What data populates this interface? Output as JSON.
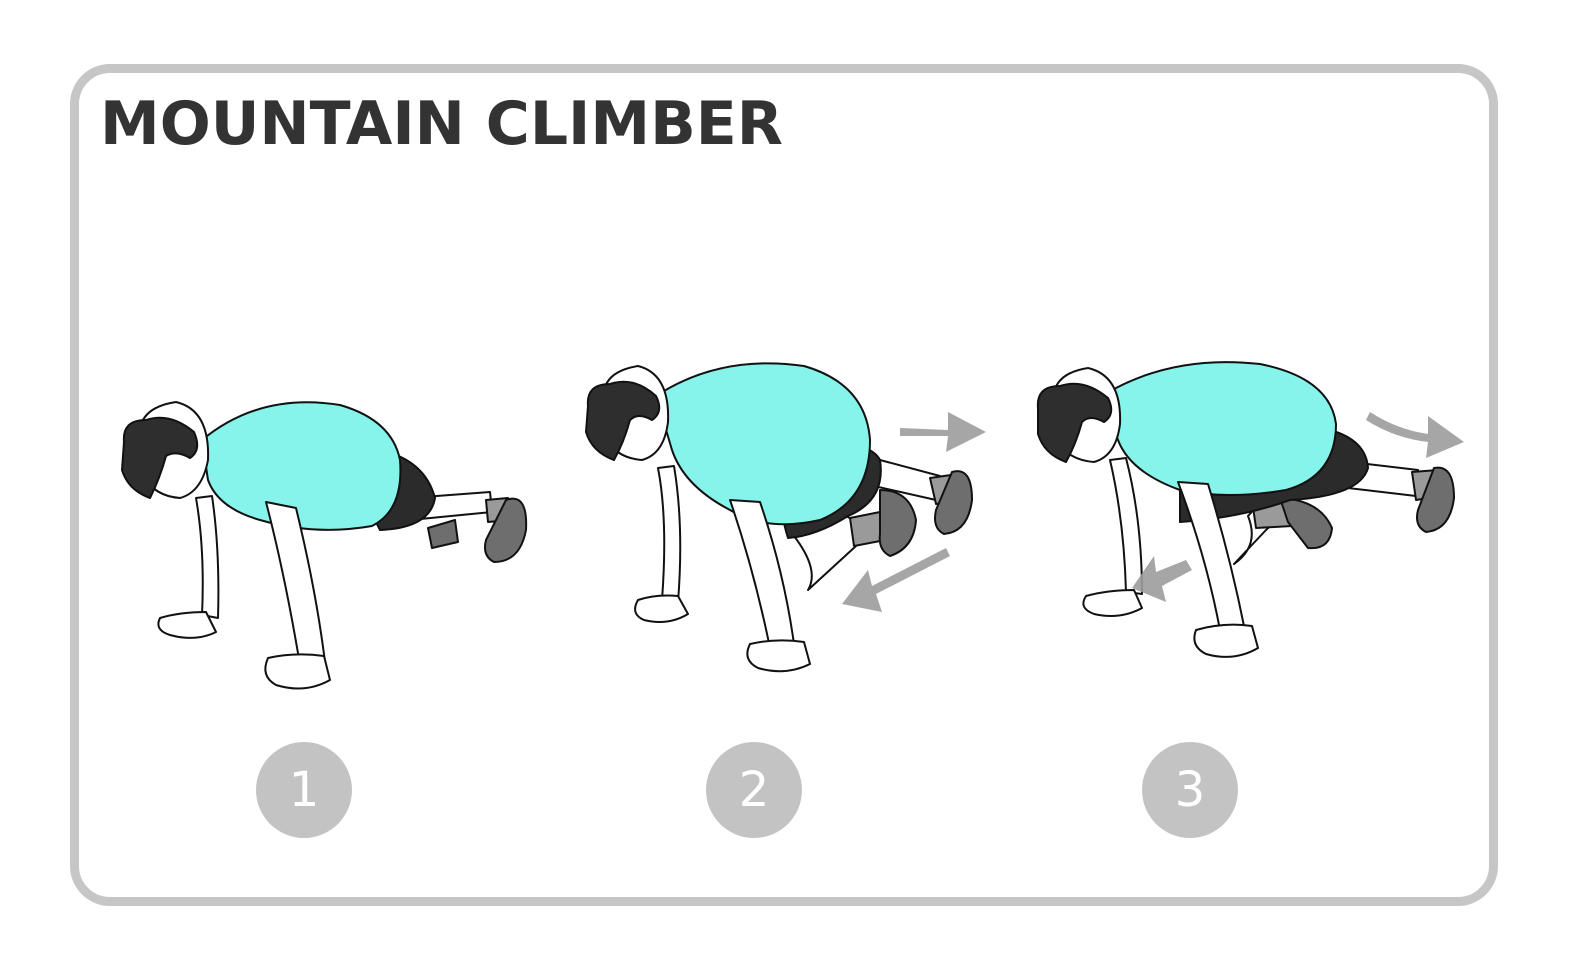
{
  "title": "MOUNTAIN CLIMBER",
  "steps": [
    {
      "number": "1"
    },
    {
      "number": "2"
    },
    {
      "number": "3"
    }
  ],
  "colors": {
    "frame": "#c6c6c6",
    "title": "#333333",
    "shirt": "#86f4ea",
    "hair": "#2e2e2e",
    "shorts": "#2b2b2b",
    "sock": "#9a9a9a",
    "shoe": "#6e6e6e",
    "arrow": "#9c9c9c",
    "badge": "#c3c3c3"
  },
  "icons": [
    "person-plank-figure",
    "motion-arrow"
  ]
}
